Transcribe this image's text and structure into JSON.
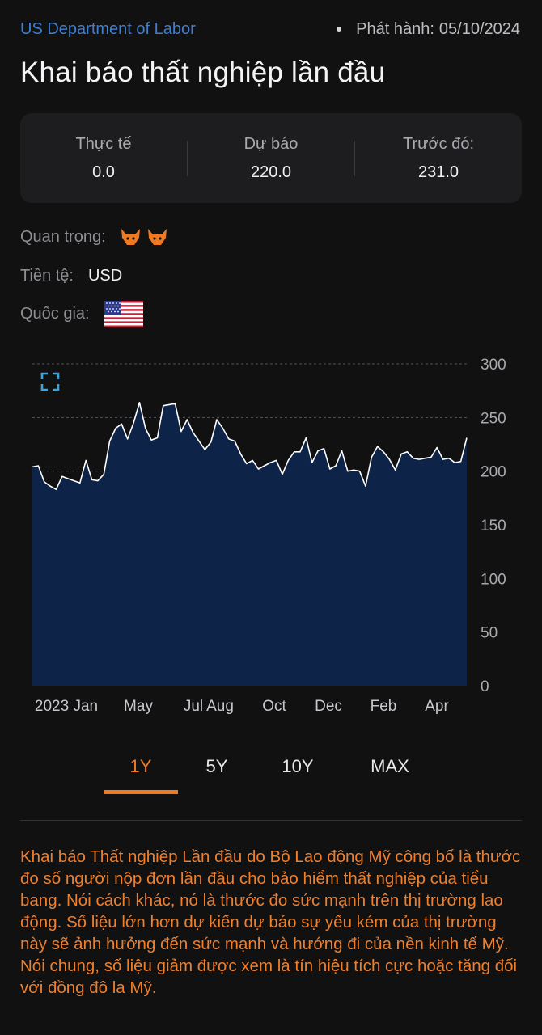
{
  "header": {
    "source": "US Department of Labor",
    "release_label": "Phát hành:",
    "release_date": "05/10/2024",
    "title": "Khai báo thất nghiệp lần đầu"
  },
  "stats": [
    {
      "label": "Thực tế",
      "value": "0.0"
    },
    {
      "label": "Dự báo",
      "value": "220.0"
    },
    {
      "label": "Trước đó:",
      "value": "231.0"
    }
  ],
  "meta": {
    "importance_label": "Quan trọng:",
    "importance_level": 2,
    "currency_label": "Tiền tệ:",
    "currency_value": "USD",
    "country_label": "Quốc gia:",
    "country_flag": "us-flag"
  },
  "colors": {
    "accent": "#f07a22",
    "area_fill": "#0d2347",
    "line": "#ffffff",
    "source_link": "#3f7fd0"
  },
  "chart_data": {
    "type": "area",
    "y_ticks": [
      "300",
      "250",
      "200",
      "150",
      "100",
      "50",
      "0"
    ],
    "ylim": [
      0,
      300
    ],
    "x_tick_labels": [
      "2023 Jan",
      "May",
      "Jul",
      "Aug",
      "Oct",
      "Dec",
      "Feb",
      "Apr"
    ],
    "values": [
      204,
      205,
      190,
      186,
      183,
      195,
      193,
      191,
      189,
      210,
      192,
      191,
      197,
      228,
      240,
      244,
      230,
      245,
      264,
      240,
      229,
      231,
      261,
      262,
      263,
      237,
      248,
      236,
      228,
      220,
      227,
      248,
      240,
      230,
      228,
      216,
      207,
      210,
      202,
      205,
      208,
      210,
      197,
      210,
      218,
      218,
      231,
      208,
      219,
      221,
      202,
      205,
      219,
      200,
      201,
      200,
      186,
      213,
      223,
      218,
      211,
      201,
      216,
      218,
      212,
      211,
      212,
      213,
      222,
      211,
      212,
      208,
      209,
      231
    ],
    "grid": true,
    "legend": "none"
  },
  "ranges": {
    "items": [
      "1Y",
      "5Y",
      "10Y",
      "MAX"
    ],
    "active": "1Y"
  },
  "description": "Khai báo Thất nghiệp Lần đầu do Bộ Lao động Mỹ công bố là thước đo số người nộp đơn lần đầu cho bảo hiểm thất nghiệp của tiểu bang. Nói cách khác, nó là thước đo sức mạnh trên thị trường lao động. Số liệu lớn hơn dự kiến dự báo sự yếu kém của thị trường này sẽ ảnh hưởng đến sức mạnh và hướng đi của nền kinh tế Mỹ. Nói chung, số liệu giảm được xem là tín hiệu tích cực hoặc tăng đối với đồng đô la Mỹ."
}
